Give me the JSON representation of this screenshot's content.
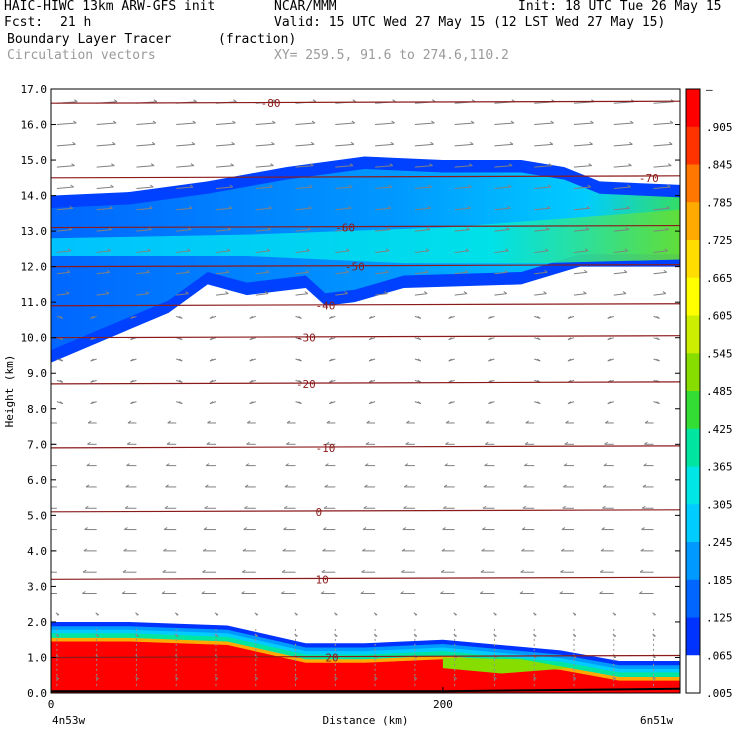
{
  "header": {
    "model": "HAIC-HIWC 13km ARW-GFS init",
    "org": "NCAR/MMM",
    "init": "Init: 18 UTC Tue 26 May 15",
    "fcst_label": "Fcst:",
    "fcst_value": "21 h",
    "valid": "Valid: 15 UTC Wed 27 May 15 (12 LST Wed 27 May 15)",
    "field_name": "Boundary Layer Tracer",
    "field_unit": "(fraction)",
    "vector_name": "Circulation vectors",
    "xy_range": "XY= 259.5, 91.6 to 274.6,110.2"
  },
  "colors": {
    "isotherm": "#8b1a1a",
    "vector": "#808080",
    "colorbar": [
      "#ffffff",
      "#0033ff",
      "#0066ff",
      "#0099ff",
      "#00ccff",
      "#00e6e6",
      "#00e6a0",
      "#33dd33",
      "#88dd00",
      "#ccee00",
      "#ffff00",
      "#ffdd00",
      "#ffaa00",
      "#ff7700",
      "#ff3300",
      "#ff0000"
    ]
  },
  "colorbar_labels": [
    "–",
    ".905",
    ".845",
    ".785",
    ".725",
    ".665",
    ".605",
    ".545",
    ".485",
    ".425",
    ".365",
    ".305",
    ".245",
    ".185",
    ".125",
    ".065",
    ".005"
  ],
  "chart_data": {
    "type": "heatmap",
    "title": "Boundary Layer Tracer",
    "xlabel": "Distance (km)",
    "ylabel": "Height (km)",
    "x_ticks": [
      {
        "v": 0,
        "label": "0"
      },
      {
        "v": 200,
        "label": "200"
      }
    ],
    "x_end_labels": [
      "4n53w",
      "6n51w"
    ],
    "xlim": [
      0,
      321
    ],
    "ylim": [
      0,
      17
    ],
    "y_ticks": [
      0,
      1,
      2,
      3,
      4,
      5,
      6,
      7,
      8,
      9,
      10,
      11,
      12,
      13,
      14,
      15,
      16,
      17
    ],
    "y_tick_labels": [
      "0.0",
      "1.0",
      "2.0",
      "3.0",
      "4.0",
      "5.0",
      "6.0",
      "7.0",
      "8.0",
      "9.0",
      "10.0",
      "11.0",
      "12.0",
      "13.0",
      "14.0",
      "15.0",
      "16.0",
      "17.0"
    ],
    "isotherms": [
      {
        "label": "20",
        "y": 1.0,
        "lx": 140
      },
      {
        "label": "10",
        "y": 3.2,
        "lx": 135
      },
      {
        "label": "0",
        "y": 5.1,
        "lx": 135
      },
      {
        "label": "-10",
        "y": 6.9,
        "lx": 135
      },
      {
        "label": "-20",
        "y": 8.7,
        "lx": 125
      },
      {
        "label": "-30",
        "y": 10.0,
        "lx": 125
      },
      {
        "label": "-40",
        "y": 10.9,
        "lx": 135
      },
      {
        "label": "-50",
        "y": 12.0,
        "lx": 150
      },
      {
        "label": "-60",
        "y": 13.1,
        "lx": 145
      },
      {
        "label": "-70",
        "y": 14.5,
        "lx": 300
      },
      {
        "label": "-80",
        "y": 16.6,
        "lx": 107
      }
    ],
    "tracer_upper_layer": {
      "top_km": [
        [
          0,
          14.0
        ],
        [
          40,
          14.1
        ],
        [
          80,
          14.4
        ],
        [
          120,
          14.8
        ],
        [
          160,
          15.1
        ],
        [
          200,
          15.0
        ],
        [
          240,
          15.0
        ],
        [
          262,
          14.8
        ],
        [
          280,
          14.4
        ],
        [
          321,
          14.3
        ]
      ],
      "bottom_km": [
        [
          0,
          9.3
        ],
        [
          30,
          10.0
        ],
        [
          60,
          10.7
        ],
        [
          80,
          11.5
        ],
        [
          100,
          11.2
        ],
        [
          130,
          11.4
        ],
        [
          140,
          10.9
        ],
        [
          155,
          11.0
        ],
        [
          180,
          11.4
        ],
        [
          240,
          11.5
        ],
        [
          270,
          12.0
        ],
        [
          321,
          12.0
        ]
      ],
      "max_value": 0.425
    },
    "tracer_boundary_layer": {
      "top_km": [
        [
          0,
          2.0
        ],
        [
          40,
          2.0
        ],
        [
          90,
          1.9
        ],
        [
          130,
          1.4
        ],
        [
          160,
          1.4
        ],
        [
          200,
          1.5
        ],
        [
          260,
          1.2
        ],
        [
          290,
          0.9
        ],
        [
          321,
          0.9
        ]
      ],
      "max_value": 1.0
    }
  }
}
